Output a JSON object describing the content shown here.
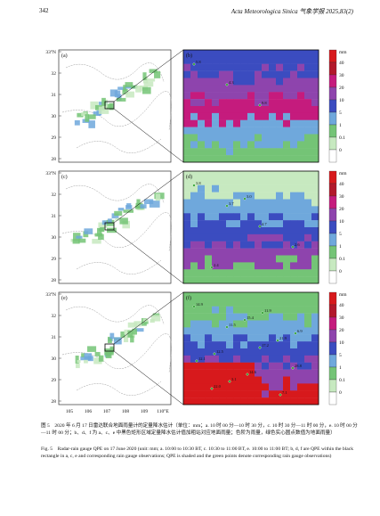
{
  "header": {
    "page_number": "342",
    "journal": "Acta Meteorologica Sinica   气象学报   2025,83(2)"
  },
  "figure": {
    "panel_labels": [
      "(a)",
      "(b)",
      "(c)",
      "(d)",
      "(e)",
      "(f)"
    ],
    "lat_labels": [
      "33°N",
      "32",
      "31",
      "30",
      "29",
      "28"
    ],
    "lon_labels": [
      "105",
      "106",
      "107",
      "108",
      "109",
      "110°E"
    ],
    "colorbar_unit": "mm",
    "colorbar_ticks": [
      "40",
      "30",
      "20",
      "10",
      "5",
      "1",
      "0.1",
      "0"
    ],
    "colorbar_colors": [
      "#d7191c",
      "#b2182b",
      "#c51b7d",
      "#8e44ad",
      "#3b4cc0",
      "#6fa8dc",
      "#74c476",
      "#c7e9c0",
      "#ffffff"
    ],
    "panel_b_points": [
      "5.8",
      "4.3",
      "9.8"
    ],
    "panel_d_points": [
      "3.8",
      "3.7",
      "4.7",
      "2.6",
      "2.4",
      "3.0"
    ],
    "panel_f_points": [
      "14.9",
      "11.5",
      "17.2",
      "28.8",
      "22.0",
      "15.4",
      "21.9",
      "12.1",
      "3.1",
      "11.9",
      "6.9",
      "12.5",
      "14.6",
      "7.1"
    ]
  },
  "caption": {
    "chinese": "图 5　2020 年 6 月 17 日雷达联合地面雨量计的定量降水估计（单位：mm；a. 10 时 00 分—10 时 30 分，c. 10 时 30 分—11 时 00 分，e. 10 时 00 分—11 时 00 分；b、d、f 为 a、c、e 中黑色矩形区域定量降水估计值加粗站对应地面雨量；色阶为雨量，绿色实心圆点数值为地面雨量）",
    "english": "Fig. 5　Radar-rain gauge QPE on 17 June 2020 (unit: mm; a. 10:00 to 10:30 BT, c. 10:30 to 11:00 BT, e. 10:00 to 11:00 BT; b, d, f are QPE within the black rectangle in a, c, e and corresponding rain gauge observations; QPE is shaded and the green points denote corresponding rain gauge observations)"
  }
}
